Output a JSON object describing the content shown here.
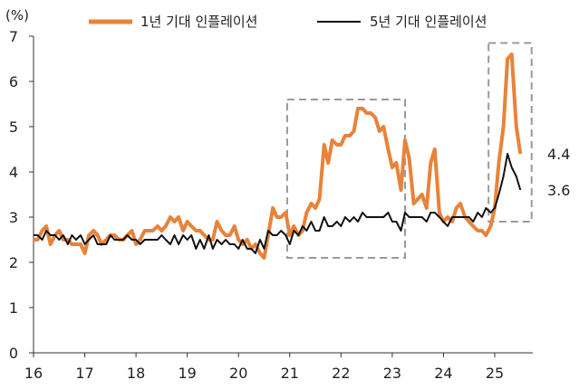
{
  "chart_data": {
    "type": "line",
    "unit_label": "(%)",
    "ylim": [
      0,
      7
    ],
    "y_ticks": [
      0,
      1,
      2,
      3,
      4,
      5,
      6,
      7
    ],
    "x_range": [
      2016.0,
      2025.6
    ],
    "x_ticks": [
      {
        "value": 2016,
        "label": "16"
      },
      {
        "value": 2017,
        "label": "17"
      },
      {
        "value": 2018,
        "label": "18"
      },
      {
        "value": 2019,
        "label": "19"
      },
      {
        "value": 2020,
        "label": "20"
      },
      {
        "value": 2021,
        "label": "21"
      },
      {
        "value": 2022,
        "label": "22"
      },
      {
        "value": 2023,
        "label": "23"
      },
      {
        "value": 2024,
        "label": "24"
      },
      {
        "value": 2025,
        "label": "25"
      }
    ],
    "legend_position": "top",
    "grid": false,
    "series": [
      {
        "name": "1년 기대 인플레이션",
        "color": "#E8833A",
        "end_label": "4.4",
        "points": [
          [
            2016.0,
            2.5
          ],
          [
            2016.08,
            2.5
          ],
          [
            2016.17,
            2.7
          ],
          [
            2016.25,
            2.8
          ],
          [
            2016.33,
            2.4
          ],
          [
            2016.42,
            2.6
          ],
          [
            2016.5,
            2.7
          ],
          [
            2016.58,
            2.5
          ],
          [
            2016.67,
            2.5
          ],
          [
            2016.75,
            2.4
          ],
          [
            2016.83,
            2.4
          ],
          [
            2016.92,
            2.4
          ],
          [
            2017.0,
            2.2
          ],
          [
            2017.08,
            2.6
          ],
          [
            2017.17,
            2.7
          ],
          [
            2017.25,
            2.6
          ],
          [
            2017.33,
            2.4
          ],
          [
            2017.42,
            2.5
          ],
          [
            2017.5,
            2.6
          ],
          [
            2017.58,
            2.6
          ],
          [
            2017.67,
            2.5
          ],
          [
            2017.75,
            2.5
          ],
          [
            2017.83,
            2.6
          ],
          [
            2017.92,
            2.7
          ],
          [
            2018.0,
            2.4
          ],
          [
            2018.08,
            2.5
          ],
          [
            2018.17,
            2.7
          ],
          [
            2018.25,
            2.7
          ],
          [
            2018.33,
            2.7
          ],
          [
            2018.42,
            2.8
          ],
          [
            2018.5,
            2.7
          ],
          [
            2018.58,
            2.8
          ],
          [
            2018.67,
            3.0
          ],
          [
            2018.75,
            2.9
          ],
          [
            2018.83,
            3.0
          ],
          [
            2018.92,
            2.7
          ],
          [
            2019.0,
            2.9
          ],
          [
            2019.08,
            2.8
          ],
          [
            2019.17,
            2.7
          ],
          [
            2019.25,
            2.7
          ],
          [
            2019.33,
            2.6
          ],
          [
            2019.42,
            2.5
          ],
          [
            2019.5,
            2.5
          ],
          [
            2019.58,
            2.9
          ],
          [
            2019.67,
            2.7
          ],
          [
            2019.75,
            2.6
          ],
          [
            2019.83,
            2.6
          ],
          [
            2019.92,
            2.8
          ],
          [
            2020.0,
            2.5
          ],
          [
            2020.08,
            2.4
          ],
          [
            2020.17,
            2.5
          ],
          [
            2020.25,
            2.3
          ],
          [
            2020.33,
            2.4
          ],
          [
            2020.42,
            2.2
          ],
          [
            2020.5,
            2.1
          ],
          [
            2020.58,
            2.6
          ],
          [
            2020.67,
            3.2
          ],
          [
            2020.75,
            3.0
          ],
          [
            2020.83,
            3.0
          ],
          [
            2020.92,
            3.1
          ],
          [
            2021.0,
            2.6
          ],
          [
            2021.08,
            2.8
          ],
          [
            2021.17,
            2.6
          ],
          [
            2021.25,
            2.7
          ],
          [
            2021.33,
            3.1
          ],
          [
            2021.42,
            3.3
          ],
          [
            2021.5,
            3.2
          ],
          [
            2021.58,
            3.4
          ],
          [
            2021.67,
            4.6
          ],
          [
            2021.75,
            4.2
          ],
          [
            2021.83,
            4.7
          ],
          [
            2021.92,
            4.6
          ],
          [
            2022.0,
            4.6
          ],
          [
            2022.08,
            4.8
          ],
          [
            2022.17,
            4.8
          ],
          [
            2022.25,
            4.9
          ],
          [
            2022.33,
            5.4
          ],
          [
            2022.42,
            5.4
          ],
          [
            2022.5,
            5.3
          ],
          [
            2022.58,
            5.3
          ],
          [
            2022.67,
            5.2
          ],
          [
            2022.75,
            4.9
          ],
          [
            2022.83,
            5.0
          ],
          [
            2022.92,
            4.5
          ],
          [
            2023.0,
            4.1
          ],
          [
            2023.08,
            4.2
          ],
          [
            2023.17,
            3.6
          ],
          [
            2023.25,
            4.7
          ],
          [
            2023.33,
            4.3
          ],
          [
            2023.42,
            3.3
          ],
          [
            2023.5,
            3.4
          ],
          [
            2023.58,
            3.5
          ],
          [
            2023.67,
            3.2
          ],
          [
            2023.75,
            4.2
          ],
          [
            2023.83,
            4.5
          ],
          [
            2023.92,
            3.1
          ],
          [
            2024.0,
            2.9
          ],
          [
            2024.08,
            3.0
          ],
          [
            2024.17,
            2.9
          ],
          [
            2024.25,
            3.2
          ],
          [
            2024.33,
            3.3
          ],
          [
            2024.42,
            3.0
          ],
          [
            2024.5,
            2.9
          ],
          [
            2024.58,
            2.8
          ],
          [
            2024.67,
            2.7
          ],
          [
            2024.75,
            2.7
          ],
          [
            2024.83,
            2.6
          ],
          [
            2024.92,
            2.8
          ],
          [
            2025.0,
            3.2
          ],
          [
            2025.08,
            4.2
          ],
          [
            2025.17,
            5.0
          ],
          [
            2025.25,
            6.5
          ],
          [
            2025.33,
            6.6
          ],
          [
            2025.42,
            5.0
          ],
          [
            2025.5,
            4.4
          ]
        ]
      },
      {
        "name": "5년 기대 인플레이션",
        "color": "#111111",
        "end_label": "3.6",
        "points": [
          [
            2016.0,
            2.6
          ],
          [
            2016.08,
            2.6
          ],
          [
            2016.17,
            2.5
          ],
          [
            2016.25,
            2.7
          ],
          [
            2016.33,
            2.6
          ],
          [
            2016.42,
            2.6
          ],
          [
            2016.5,
            2.5
          ],
          [
            2016.58,
            2.6
          ],
          [
            2016.67,
            2.4
          ],
          [
            2016.75,
            2.6
          ],
          [
            2016.83,
            2.5
          ],
          [
            2016.92,
            2.6
          ],
          [
            2017.0,
            2.4
          ],
          [
            2017.08,
            2.5
          ],
          [
            2017.17,
            2.6
          ],
          [
            2017.25,
            2.4
          ],
          [
            2017.33,
            2.4
          ],
          [
            2017.42,
            2.4
          ],
          [
            2017.5,
            2.6
          ],
          [
            2017.58,
            2.5
          ],
          [
            2017.67,
            2.5
          ],
          [
            2017.75,
            2.5
          ],
          [
            2017.83,
            2.6
          ],
          [
            2017.92,
            2.5
          ],
          [
            2018.0,
            2.5
          ],
          [
            2018.08,
            2.4
          ],
          [
            2018.17,
            2.5
          ],
          [
            2018.25,
            2.5
          ],
          [
            2018.33,
            2.5
          ],
          [
            2018.42,
            2.5
          ],
          [
            2018.5,
            2.6
          ],
          [
            2018.58,
            2.5
          ],
          [
            2018.67,
            2.4
          ],
          [
            2018.75,
            2.6
          ],
          [
            2018.83,
            2.4
          ],
          [
            2018.92,
            2.6
          ],
          [
            2019.0,
            2.5
          ],
          [
            2019.08,
            2.6
          ],
          [
            2019.17,
            2.3
          ],
          [
            2019.25,
            2.5
          ],
          [
            2019.33,
            2.3
          ],
          [
            2019.42,
            2.6
          ],
          [
            2019.5,
            2.3
          ],
          [
            2019.58,
            2.5
          ],
          [
            2019.67,
            2.4
          ],
          [
            2019.75,
            2.5
          ],
          [
            2019.83,
            2.4
          ],
          [
            2019.92,
            2.4
          ],
          [
            2020.0,
            2.3
          ],
          [
            2020.08,
            2.5
          ],
          [
            2020.17,
            2.3
          ],
          [
            2020.25,
            2.3
          ],
          [
            2020.33,
            2.2
          ],
          [
            2020.42,
            2.5
          ],
          [
            2020.5,
            2.3
          ],
          [
            2020.58,
            2.7
          ],
          [
            2020.67,
            2.6
          ],
          [
            2020.75,
            2.6
          ],
          [
            2020.83,
            2.7
          ],
          [
            2020.92,
            2.6
          ],
          [
            2021.0,
            2.4
          ],
          [
            2021.08,
            2.7
          ],
          [
            2021.17,
            2.6
          ],
          [
            2021.25,
            2.8
          ],
          [
            2021.33,
            2.7
          ],
          [
            2021.42,
            2.9
          ],
          [
            2021.5,
            2.7
          ],
          [
            2021.58,
            2.7
          ],
          [
            2021.67,
            3.0
          ],
          [
            2021.75,
            2.8
          ],
          [
            2021.83,
            2.8
          ],
          [
            2021.92,
            2.9
          ],
          [
            2022.0,
            2.8
          ],
          [
            2022.08,
            3.0
          ],
          [
            2022.17,
            2.9
          ],
          [
            2022.25,
            3.0
          ],
          [
            2022.33,
            2.9
          ],
          [
            2022.42,
            3.1
          ],
          [
            2022.5,
            3.0
          ],
          [
            2022.58,
            3.0
          ],
          [
            2022.67,
            3.0
          ],
          [
            2022.75,
            3.0
          ],
          [
            2022.83,
            3.0
          ],
          [
            2022.92,
            3.1
          ],
          [
            2023.0,
            2.9
          ],
          [
            2023.08,
            2.9
          ],
          [
            2023.17,
            2.7
          ],
          [
            2023.25,
            3.1
          ],
          [
            2023.33,
            3.0
          ],
          [
            2023.42,
            3.0
          ],
          [
            2023.5,
            3.0
          ],
          [
            2023.58,
            3.0
          ],
          [
            2023.67,
            2.9
          ],
          [
            2023.75,
            3.1
          ],
          [
            2023.83,
            3.1
          ],
          [
            2023.92,
            3.0
          ],
          [
            2024.0,
            2.9
          ],
          [
            2024.08,
            2.8
          ],
          [
            2024.17,
            3.0
          ],
          [
            2024.25,
            3.0
          ],
          [
            2024.33,
            3.0
          ],
          [
            2024.42,
            3.0
          ],
          [
            2024.5,
            3.0
          ],
          [
            2024.58,
            2.9
          ],
          [
            2024.67,
            3.1
          ],
          [
            2024.75,
            3.0
          ],
          [
            2024.83,
            3.2
          ],
          [
            2024.92,
            3.1
          ],
          [
            2025.0,
            3.2
          ],
          [
            2025.08,
            3.5
          ],
          [
            2025.17,
            3.9
          ],
          [
            2025.25,
            4.4
          ],
          [
            2025.33,
            4.1
          ],
          [
            2025.42,
            3.9
          ],
          [
            2025.5,
            3.6
          ]
        ]
      }
    ],
    "highlight_boxes": [
      {
        "x_from": 2020.95,
        "x_to": 2023.25,
        "y_from": 2.1,
        "y_to": 5.6
      },
      {
        "x_from": 2024.88,
        "x_to": 2025.72,
        "y_from": 2.9,
        "y_to": 6.85
      }
    ]
  }
}
